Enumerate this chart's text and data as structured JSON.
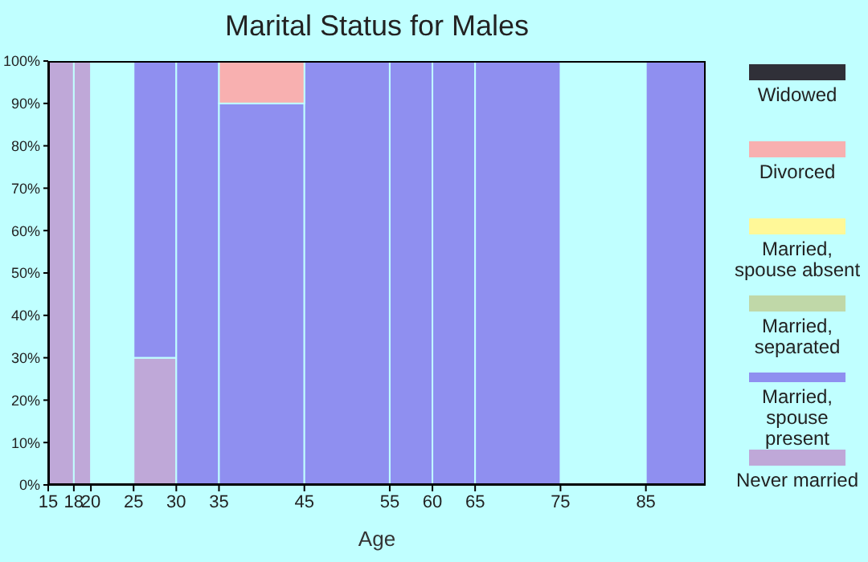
{
  "chart_data": {
    "type": "bar",
    "title": "Marital Status for Males",
    "xlabel": "Age",
    "stacked": true,
    "x": [
      16.5,
      19,
      22.5,
      27.5,
      32.5,
      40,
      50,
      57.5,
      62.5,
      70,
      80,
      88.5
    ],
    "xlim": [
      15,
      92
    ],
    "xticks": [
      15,
      18,
      20,
      25,
      30,
      35,
      45,
      55,
      60,
      65,
      75,
      85
    ],
    "ylim": [
      0,
      100
    ],
    "yticks": [
      {
        "value": 0,
        "label": "0%"
      },
      {
        "value": 10,
        "label": "10%"
      },
      {
        "value": 20,
        "label": "20%"
      },
      {
        "value": 30,
        "label": "30%"
      },
      {
        "value": 40,
        "label": "40%"
      },
      {
        "value": 50,
        "label": "50%"
      },
      {
        "value": 60,
        "label": "60%"
      },
      {
        "value": 70,
        "label": "70%"
      },
      {
        "value": 80,
        "label": "80%"
      },
      {
        "value": 90,
        "label": "90%"
      },
      {
        "value": 100,
        "label": "100%"
      }
    ],
    "series": [
      {
        "name": "Never married",
        "color": "#bfa8d8",
        "values": [
          100,
          100,
          0,
          30,
          0,
          0,
          0,
          0,
          0,
          0,
          0,
          0
        ]
      },
      {
        "name": "Married, spouse present",
        "color": "#8f8ff0",
        "values": [
          0,
          0,
          0,
          70,
          100,
          90,
          100,
          100,
          100,
          100,
          0,
          100
        ]
      },
      {
        "name": "Married, separated",
        "color": "#c0d8a8",
        "values": [
          0,
          0,
          0,
          0,
          0,
          0,
          0,
          0,
          0,
          0,
          0,
          0
        ]
      },
      {
        "name": "Married, spouse absent",
        "color": "#fff898",
        "values": [
          0,
          0,
          0,
          0,
          0,
          0,
          0,
          0,
          0,
          0,
          0,
          0
        ]
      },
      {
        "name": "Divorced",
        "color": "#f8b0b0",
        "values": [
          0,
          0,
          0,
          0,
          0,
          10,
          0,
          0,
          0,
          0,
          0,
          0
        ]
      },
      {
        "name": "Widowed",
        "color": "#303038",
        "values": [
          0,
          0,
          0,
          0,
          0,
          0,
          0,
          0,
          0,
          0,
          0,
          0
        ]
      }
    ],
    "grid": false,
    "legend": "right"
  }
}
